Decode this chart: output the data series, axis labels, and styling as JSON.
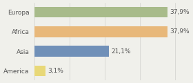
{
  "categories": [
    "Europa",
    "Africa",
    "Asia",
    "America"
  ],
  "values": [
    37.9,
    37.9,
    21.1,
    3.1
  ],
  "labels": [
    "37,9%",
    "37,9%",
    "21,1%",
    "3,1%"
  ],
  "bar_colors": [
    "#a8bb8a",
    "#e8b87a",
    "#7090b8",
    "#e8d878"
  ],
  "background_color": "#f0f0eb",
  "xlim": [
    0,
    44
  ],
  "bar_height": 0.55,
  "label_fontsize": 6.5,
  "category_fontsize": 6.5,
  "label_color": "#555555",
  "grid_color": "#d0d0cc"
}
